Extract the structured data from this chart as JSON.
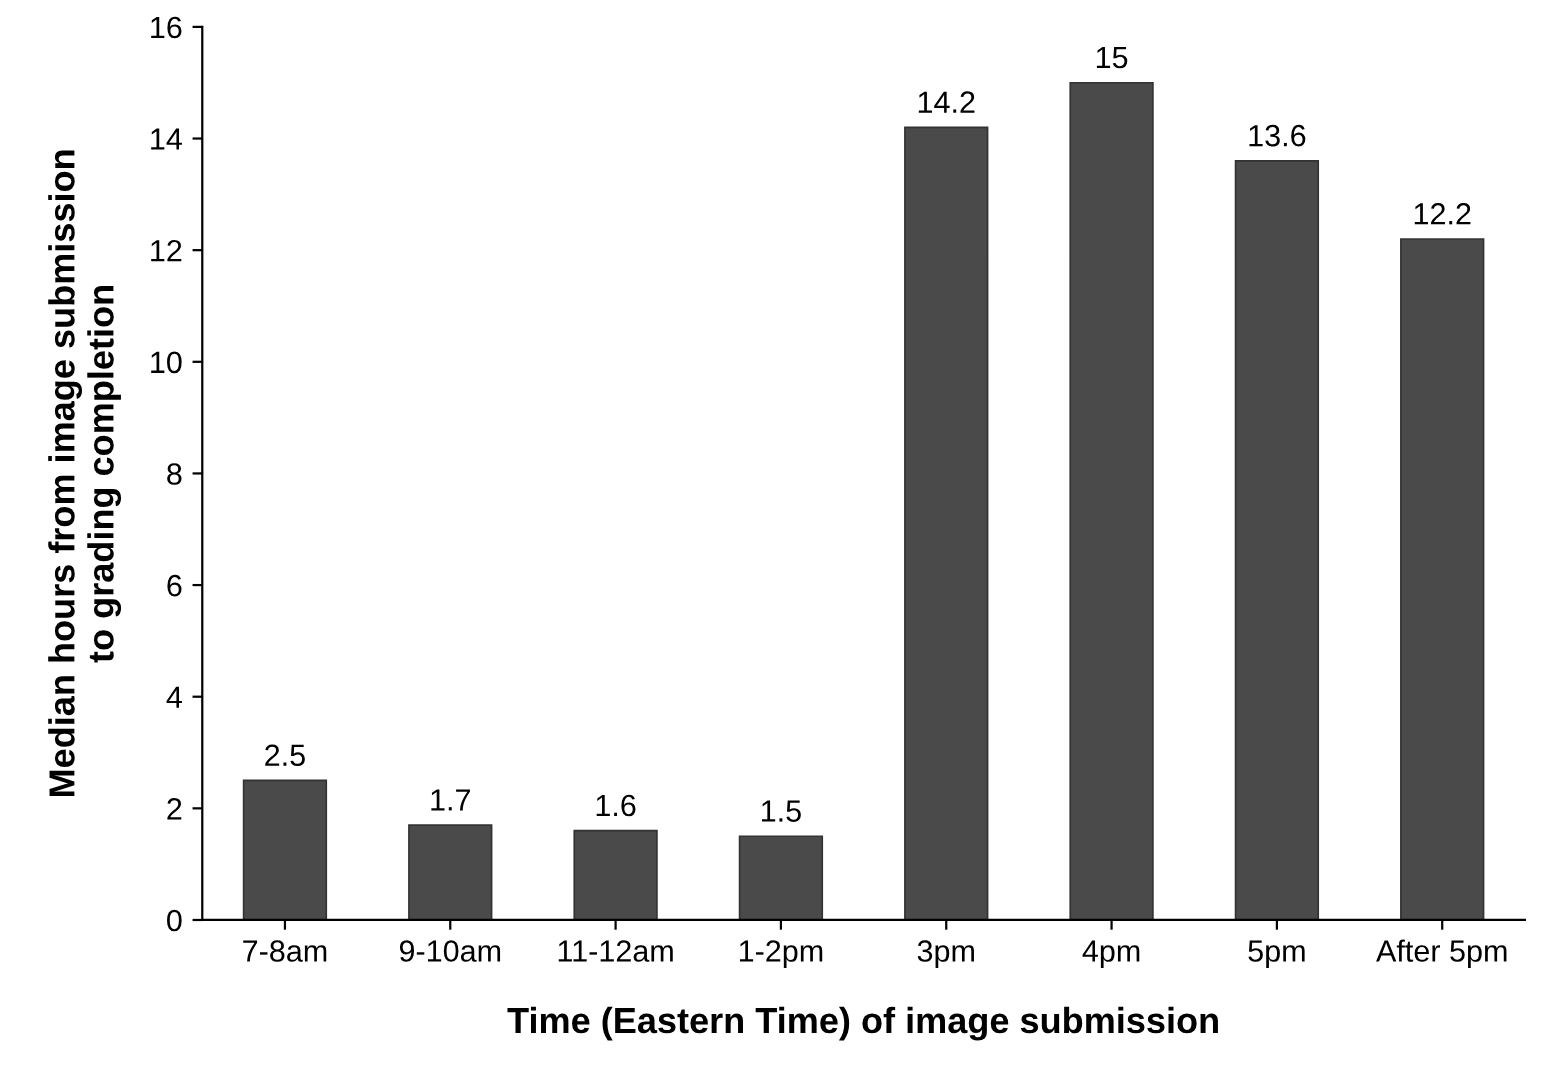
{
  "chart_data": {
    "type": "bar",
    "xlabel": "Time (Eastern Time) of image submission",
    "ylabel": "Median hours from image submission\nto grading completion",
    "categories": [
      "7-8am",
      "9-10am",
      "11-12am",
      "1-2pm",
      "3pm",
      "4pm",
      "5pm",
      "After 5pm"
    ],
    "values": [
      2.5,
      1.7,
      1.6,
      1.5,
      14.2,
      15,
      13.6,
      12.2
    ],
    "color": "#4a4a4a",
    "ylim": [
      0,
      16
    ],
    "yticks": [
      0,
      2,
      4,
      6,
      8,
      10,
      12,
      14,
      16
    ],
    "grid": false,
    "data_labels": true
  }
}
